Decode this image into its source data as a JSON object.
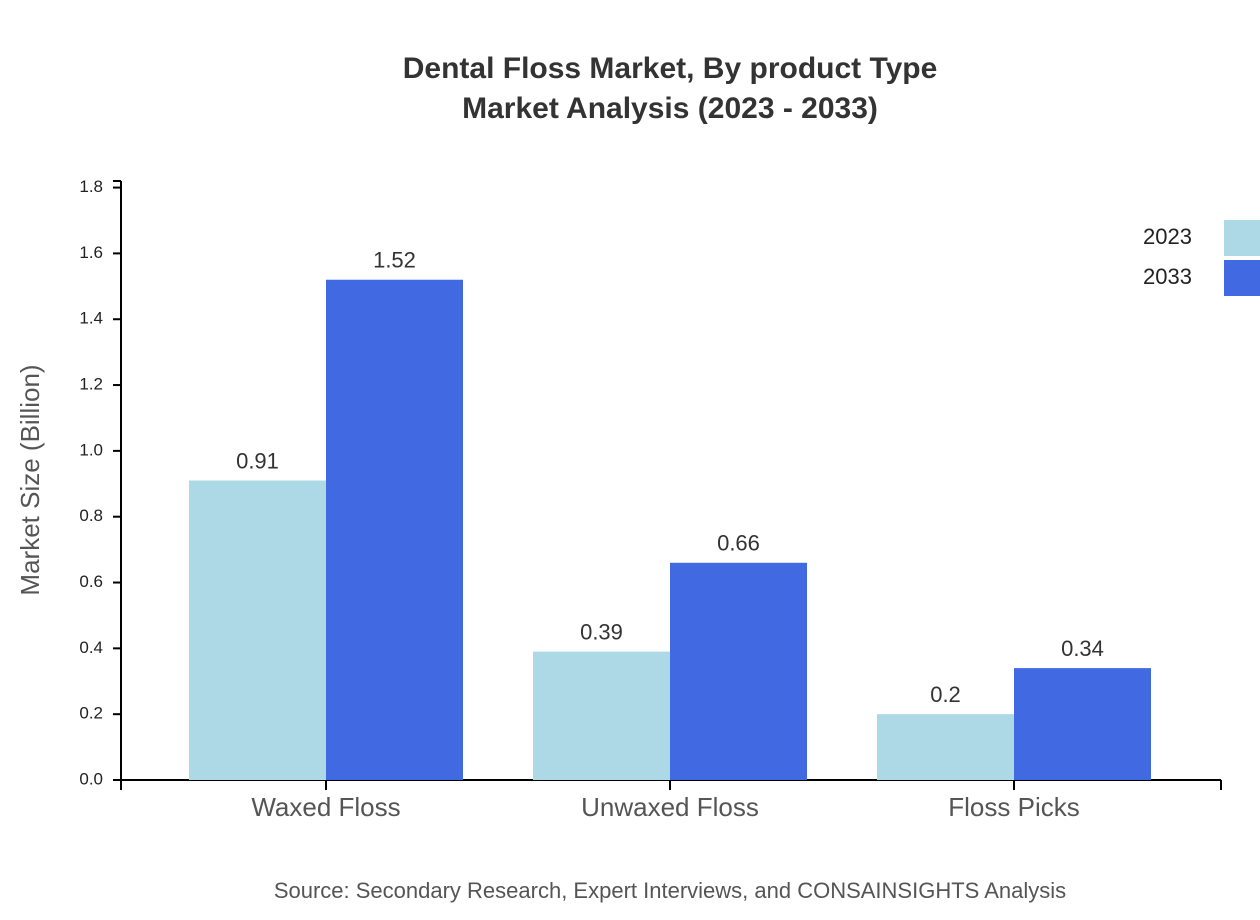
{
  "chart_data": {
    "type": "bar",
    "title": [
      "Dental Floss Market, By product Type",
      "Market Analysis (2023 - 2033)"
    ],
    "y_label": "Market Size (Billion)",
    "source": "Source: Secondary Research, Expert Interviews, and CONSAINSIGHTS Analysis",
    "categories": [
      "Waxed Floss",
      "Unwaxed Floss",
      "Floss Picks"
    ],
    "series": [
      {
        "name": "2023",
        "color": "#add8e6",
        "values": [
          0.91,
          0.39,
          0.2
        ]
      },
      {
        "name": "2033",
        "color": "#4169e1",
        "values": [
          1.52,
          0.66,
          0.34
        ]
      }
    ],
    "ylim": [
      0,
      1.82
    ],
    "yticks": [
      {
        "value": 0,
        "label": "0.0"
      },
      0.2,
      0.4,
      0.6,
      0.8,
      {
        "value": 1,
        "label": "1.0"
      },
      1.2,
      1.4,
      1.6,
      1.8
    ],
    "legend": "top-right"
  }
}
